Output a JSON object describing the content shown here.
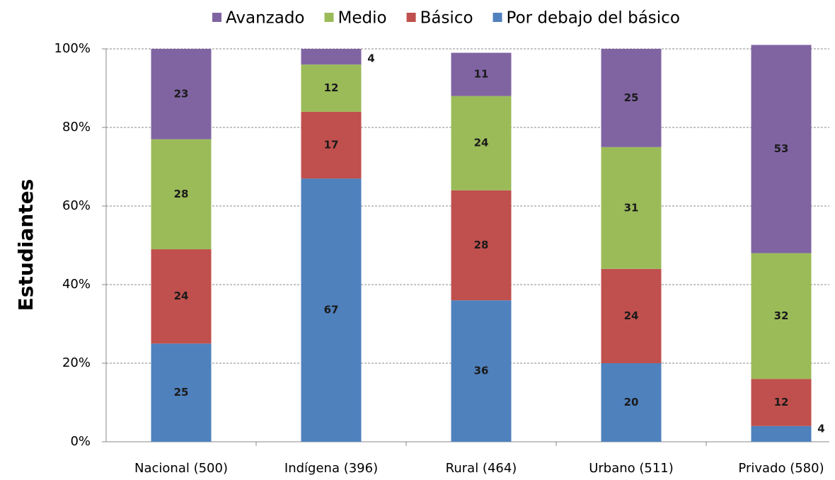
{
  "chart_data": {
    "type": "bar",
    "stacked": true,
    "legend": "top",
    "y_label": "Estudiantes",
    "categories": [
      "Nacional (500)",
      "Indígena (396)",
      "Rural (464)",
      "Urbano (511)",
      "Privado (580)"
    ],
    "series": [
      {
        "name": "Por debajo del básico",
        "color": "#4f81bd",
        "values": [
          25,
          67,
          36,
          20,
          4
        ]
      },
      {
        "name": "Básico",
        "color": "#c0504d",
        "values": [
          24,
          17,
          28,
          24,
          12
        ]
      },
      {
        "name": "Medio",
        "color": "#9bbb59",
        "values": [
          28,
          12,
          24,
          31,
          32
        ]
      },
      {
        "name": "Avanzado",
        "color": "#8064a2",
        "values": [
          23,
          4,
          11,
          25,
          53
        ]
      }
    ],
    "ylim": [
      0,
      100
    ],
    "yticks": [
      {
        "value": 0,
        "label": "0%"
      },
      {
        "value": 20,
        "label": "20%"
      },
      {
        "value": 40,
        "label": "40%"
      },
      {
        "value": 60,
        "label": "60%"
      },
      {
        "value": 80,
        "label": "80%"
      },
      {
        "value": 100,
        "label": "100%"
      }
    ],
    "grid": true
  }
}
